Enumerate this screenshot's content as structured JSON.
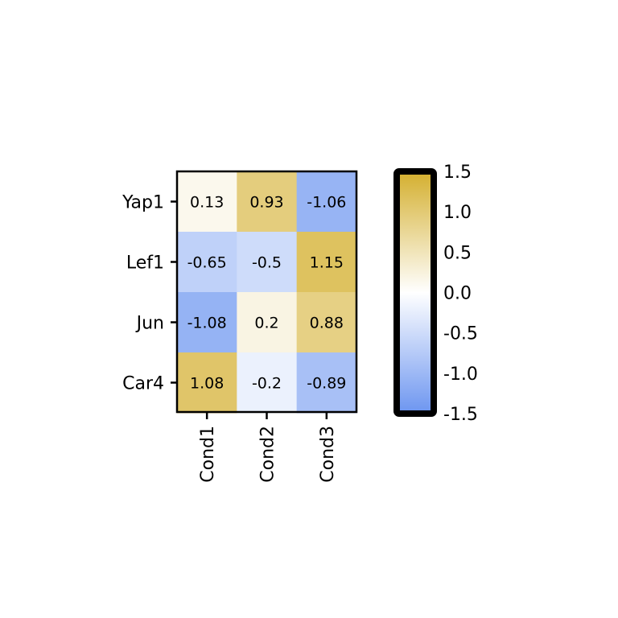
{
  "chart_data": {
    "type": "heatmap",
    "title": "",
    "xlabel": "",
    "ylabel": "",
    "rows": [
      "Yap1",
      "Lef1",
      "Jun",
      "Car4"
    ],
    "columns": [
      "Cond1",
      "Cond2",
      "Cond3"
    ],
    "values": [
      [
        0.13,
        0.93,
        -1.06
      ],
      [
        -0.65,
        -0.5,
        1.15
      ],
      [
        -1.08,
        0.2,
        0.88
      ],
      [
        1.08,
        -0.2,
        -0.89
      ]
    ],
    "cell_labels": [
      [
        "0.13",
        "0.93",
        "-1.06"
      ],
      [
        "-0.65",
        "-0.5",
        "1.15"
      ],
      [
        "-1.08",
        "0.2",
        "0.88"
      ],
      [
        "1.08",
        "-0.2",
        "-0.89"
      ]
    ],
    "colorbar": {
      "range": [
        -1.5,
        1.5
      ],
      "ticks": [
        1.5,
        1.0,
        0.5,
        0.0,
        -0.5,
        -1.0,
        -1.5
      ],
      "tick_labels": [
        "1.5",
        "1.0",
        "0.5",
        "0.0",
        "-0.5",
        "-1.0",
        "-1.5"
      ],
      "low_color": "#6c95f0",
      "mid_color": "#ffffff",
      "high_color": "#d4af2e"
    },
    "grid": false,
    "legend": "colorbar-right"
  }
}
